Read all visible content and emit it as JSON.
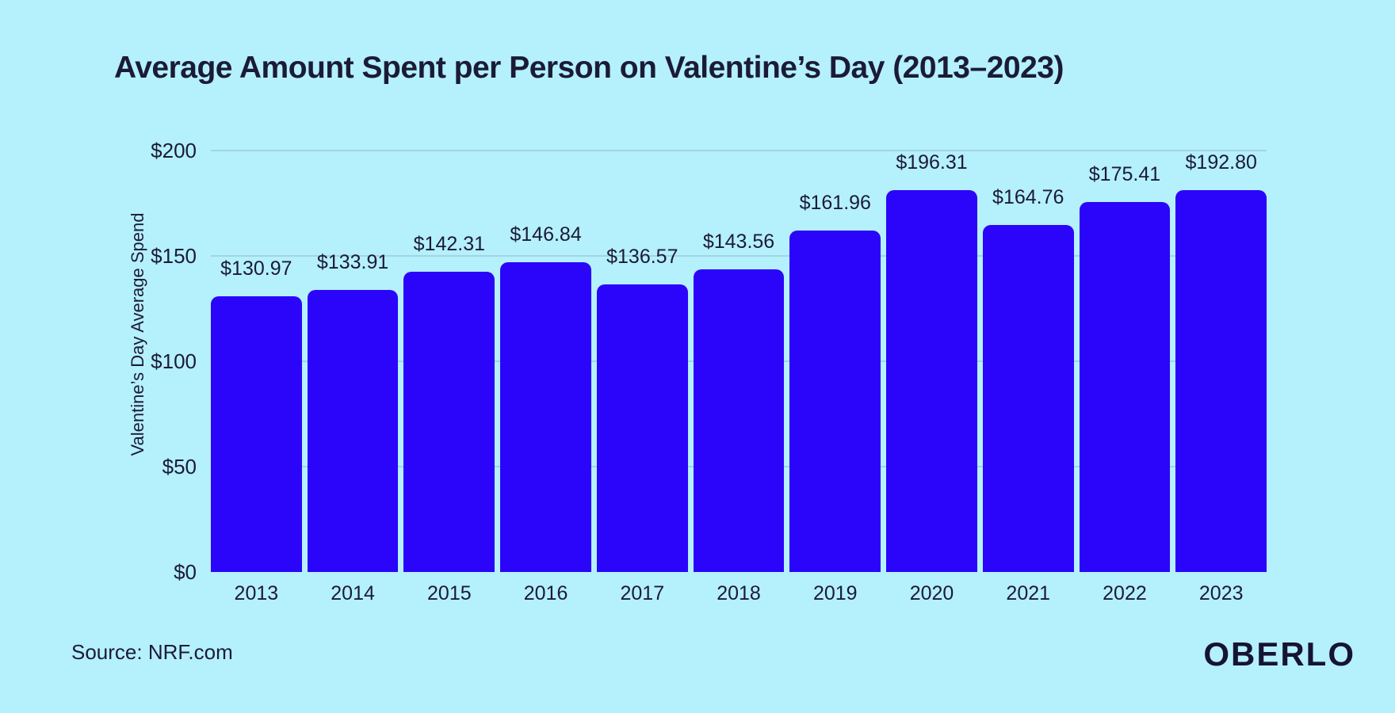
{
  "source": "Source: NRF.com",
  "brand": "OBERLO",
  "colors": {
    "background": "#B5F0FD",
    "bar": "#2B05FA",
    "text": "#1B1B35",
    "gridline": "#A5D3E2",
    "brand_text": "#151432"
  },
  "chart_data": {
    "type": "bar",
    "title": "Average Amount Spent per Person on Valentine’s Day (2013–2023)",
    "xlabel": "",
    "ylabel": "Valentine’s Day Average Spend",
    "categories": [
      "2013",
      "2014",
      "2015",
      "2016",
      "2017",
      "2018",
      "2019",
      "2020",
      "2021",
      "2022",
      "2023"
    ],
    "values": [
      130.97,
      133.91,
      142.31,
      146.84,
      136.57,
      143.56,
      161.96,
      196.31,
      164.76,
      175.41,
      192.8
    ],
    "value_labels": [
      "$130.97",
      "$133.91",
      "$142.31",
      "$146.84",
      "$136.57",
      "$143.56",
      "$161.96",
      "$196.31",
      "$164.76",
      "$175.41",
      "$192.80"
    ],
    "ylim": [
      0,
      200
    ],
    "yticks": [
      {
        "value": 0,
        "label": "$0"
      },
      {
        "value": 50,
        "label": "$50"
      },
      {
        "value": 100,
        "label": "$100"
      },
      {
        "value": 150,
        "label": "$150"
      },
      {
        "value": 200,
        "label": "$200"
      }
    ],
    "grid": "horizontal",
    "legend": "none"
  }
}
